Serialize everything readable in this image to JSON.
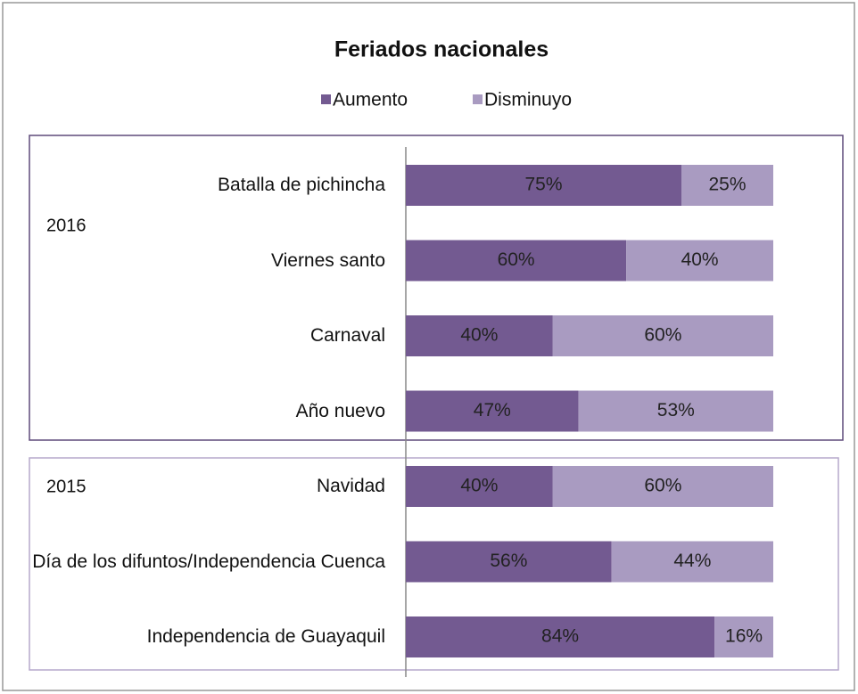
{
  "chart_data": {
    "type": "stacked-bar-horizontal",
    "title": "Feriados nacionales",
    "categories": [
      "Batalla de pichincha",
      "Viernes santo",
      "Carnaval",
      "Año nuevo",
      "Navidad",
      "Día de los difuntos/Independencia Cuenca",
      "Independencia de Guayaquil"
    ],
    "series": [
      {
        "name": "Aumento",
        "color": "#735a91",
        "values": [
          75,
          60,
          40,
          47,
          40,
          56,
          84
        ],
        "value_labels": [
          "75%",
          "60%",
          "40%",
          "47%",
          "40%",
          "56%",
          "84%"
        ]
      },
      {
        "name": "Disminuyo",
        "color": "#a99bc1",
        "values": [
          25,
          40,
          60,
          53,
          60,
          44,
          16
        ],
        "value_labels": [
          "25%",
          "40%",
          "60%",
          "53%",
          "60%",
          "44%",
          "16%"
        ]
      }
    ],
    "xlim": [
      0,
      100
    ],
    "annotations": [
      "2016",
      "2015"
    ],
    "legend": "top"
  }
}
